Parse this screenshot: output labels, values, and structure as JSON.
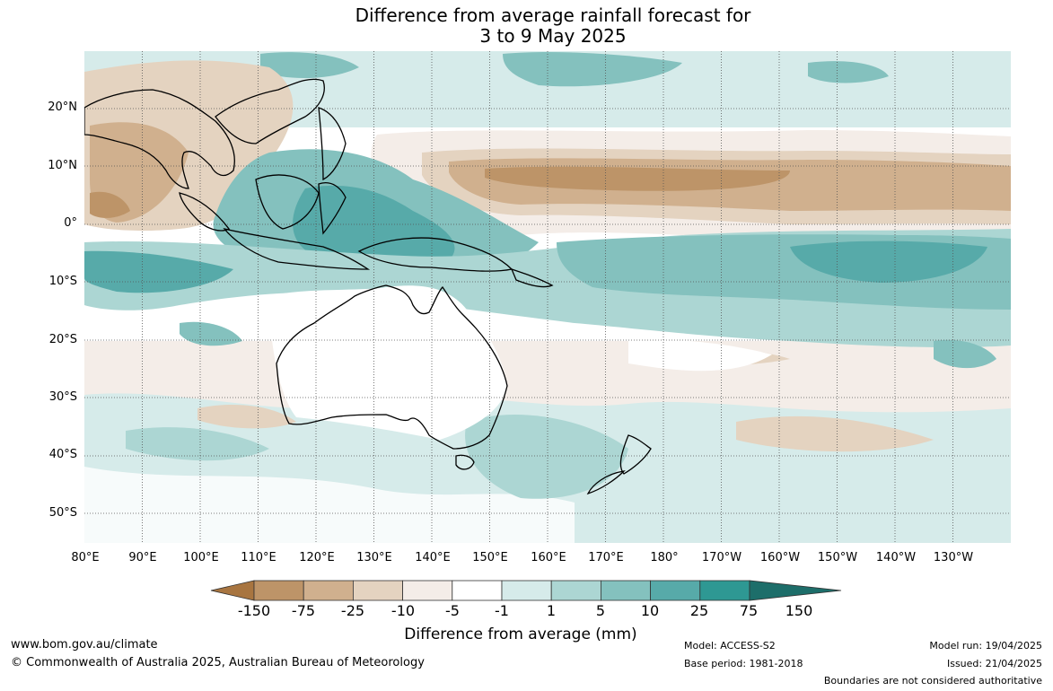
{
  "title": {
    "line1": "Difference from average rainfall forecast for",
    "line2": "3 to 9 May 2025"
  },
  "axes": {
    "lat_labels": [
      "20°N",
      "10°N",
      "0°",
      "10°S",
      "20°S",
      "30°S",
      "40°S",
      "50°S"
    ],
    "lon_labels": [
      "80°E",
      "90°E",
      "100°E",
      "110°E",
      "120°E",
      "130°E",
      "140°E",
      "150°E",
      "160°E",
      "170°E",
      "180°",
      "170°W",
      "160°W",
      "150°W",
      "140°W",
      "130°W"
    ]
  },
  "legend": {
    "title": "Difference from average (mm)",
    "ticks": [
      "-150",
      "-75",
      "-25",
      "-10",
      "-5",
      "-1",
      "1",
      "5",
      "10",
      "25",
      "75",
      "150"
    ],
    "colors": [
      "#a87540",
      "#bd9468",
      "#d0b08e",
      "#e4d3c0",
      "#f4ede8",
      "#ffffff",
      "#d6ebea",
      "#acd6d3",
      "#84c1be",
      "#57aaa9",
      "#2e9893",
      "#1d6e6a"
    ]
  },
  "footer": {
    "website": "www.bom.gov.au/climate",
    "copyright": "© Commonwealth of Australia 2025, Australian Bureau of Meteorology",
    "model": "Model: ACCESS-S2",
    "base_period": "Base period: 1981-2018",
    "model_run": "Model run: 19/04/2025",
    "issued": "Issued: 21/04/2025",
    "disclaimer": "Boundaries are not considered authoritative"
  }
}
